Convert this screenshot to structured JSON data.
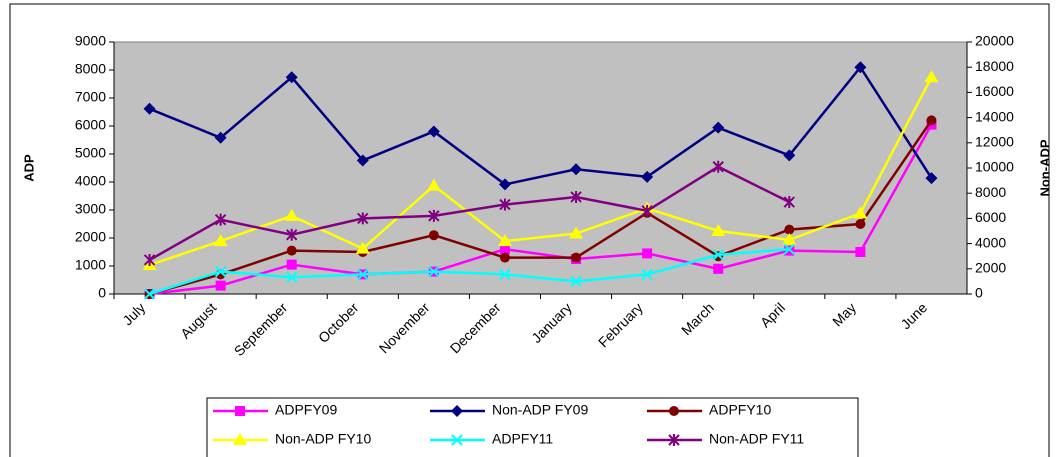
{
  "chart_data": {
    "type": "line",
    "categories": [
      "July",
      "August",
      "September",
      "October",
      "November",
      "December",
      "January",
      "February",
      "March",
      "April",
      "May",
      "June"
    ],
    "y_label": "ADP",
    "y2_label": "Non-ADP",
    "ylim": [
      0,
      9000
    ],
    "yticks": [
      0,
      1000,
      2000,
      3000,
      4000,
      5000,
      6000,
      7000,
      8000,
      9000
    ],
    "y2lim": [
      0,
      20000
    ],
    "y2ticks": [
      0,
      2000,
      4000,
      6000,
      8000,
      10000,
      12000,
      14000,
      16000,
      18000,
      20000
    ],
    "plot_background": "#c0c0c0",
    "series": [
      {
        "name": "ADPFY09",
        "color": "#ff00ff",
        "marker": "square",
        "values": [
          0,
          300,
          1050,
          700,
          800,
          1600,
          1250,
          1450,
          900,
          1550,
          1500,
          6050
        ]
      },
      {
        "name": "Non-ADP FY09",
        "color": "#000080",
        "marker": "diamond",
        "axis": "y2",
        "values": [
          14700,
          12400,
          17200,
          10600,
          12900,
          8700,
          9900,
          9300,
          13200,
          11000,
          18000,
          9200
        ]
      },
      {
        "name": "ADPFY10",
        "color": "#800000",
        "marker": "circle",
        "values": [
          0,
          700,
          1550,
          1500,
          2100,
          1300,
          1300,
          2900,
          1350,
          2300,
          2500,
          6200
        ]
      },
      {
        "name": "Non-ADP FY10",
        "color": "#ffff00",
        "marker": "triangle",
        "axis": "y2",
        "values": [
          2300,
          4200,
          6200,
          3600,
          8600,
          4200,
          4800,
          6800,
          5000,
          4300,
          6400,
          17200
        ]
      },
      {
        "name": "ADPFY11",
        "color": "#00ffff",
        "marker": "x",
        "values": [
          0,
          800,
          600,
          700,
          800,
          700,
          450,
          700,
          1400,
          1600,
          null,
          null
        ]
      },
      {
        "name": "Non-ADP FY11",
        "color": "#800080",
        "marker": "star",
        "axis": "y2",
        "values": [
          2700,
          5900,
          4700,
          6000,
          6200,
          7100,
          7700,
          6600,
          10100,
          7300,
          null,
          null
        ]
      }
    ]
  }
}
